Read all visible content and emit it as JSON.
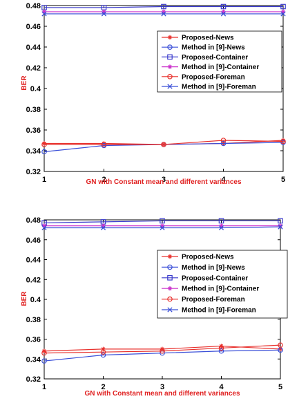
{
  "chart_data": [
    {
      "type": "line",
      "xlabel": "GN with Constant mean and different variances",
      "ylabel": "BER",
      "x": [
        1,
        2,
        3,
        4,
        5
      ],
      "xlim": [
        1,
        5
      ],
      "ylim": [
        0.32,
        0.48
      ],
      "yticks": [
        "0.32",
        "0.34",
        "0.36",
        "0.38",
        "0.4",
        "0.42",
        "0.44",
        "0.46",
        "0.48"
      ],
      "xticks": [
        "1",
        "2",
        "3",
        "4",
        "5"
      ],
      "grid": false,
      "legend_position": "right",
      "series": [
        {
          "name": "Proposed-News",
          "color": "#e8302c",
          "marker": "star",
          "values": [
            0.347,
            0.347,
            0.346,
            0.347,
            0.35
          ]
        },
        {
          "name": "Method in [9]-News",
          "color": "#3a4fd8",
          "marker": "circle",
          "values": [
            0.339,
            0.345,
            0.346,
            0.347,
            0.348
          ]
        },
        {
          "name": "Proposed-Container",
          "color": "#3a3acc",
          "marker": "square",
          "values": [
            0.478,
            0.478,
            0.479,
            0.479,
            0.479
          ]
        },
        {
          "name": "Method in [9]-Container",
          "color": "#cc33cc",
          "marker": "star",
          "values": [
            0.474,
            0.474,
            0.474,
            0.474,
            0.474
          ]
        },
        {
          "name": "Proposed-Foreman",
          "color": "#e8302c",
          "marker": "circle",
          "values": [
            0.346,
            0.346,
            0.346,
            0.35,
            0.349
          ]
        },
        {
          "name": "Method in [9]-Foreman",
          "color": "#3a4fd8",
          "marker": "x",
          "values": [
            0.472,
            0.472,
            0.472,
            0.472,
            0.472
          ]
        }
      ]
    },
    {
      "type": "line",
      "xlabel": "GN with Constant mean and different variances",
      "ylabel": "BER",
      "x": [
        1,
        2,
        3,
        4,
        5
      ],
      "xlim": [
        1,
        5
      ],
      "ylim": [
        0.32,
        0.48
      ],
      "yticks": [
        "0.32",
        "0.34",
        "0.36",
        "0.38",
        "0.4",
        "0.42",
        "0.44",
        "0.46",
        "0.48"
      ],
      "xticks": [
        "1",
        "2",
        "3",
        "4",
        "5"
      ],
      "grid": false,
      "legend_position": "right",
      "series": [
        {
          "name": "Proposed-News",
          "color": "#e8302c",
          "marker": "star",
          "values": [
            0.348,
            0.35,
            0.35,
            0.353,
            0.35
          ]
        },
        {
          "name": "Method in [9]-News",
          "color": "#3a4fd8",
          "marker": "circle",
          "values": [
            0.338,
            0.344,
            0.346,
            0.348,
            0.349
          ]
        },
        {
          "name": "Proposed-Container",
          "color": "#3a3acc",
          "marker": "square",
          "values": [
            0.477,
            0.478,
            0.479,
            0.479,
            0.479
          ]
        },
        {
          "name": "Method in [9]-Container",
          "color": "#cc33cc",
          "marker": "star",
          "values": [
            0.474,
            0.474,
            0.474,
            0.474,
            0.474
          ]
        },
        {
          "name": "Proposed-Foreman",
          "color": "#e8302c",
          "marker": "circle",
          "values": [
            0.346,
            0.347,
            0.348,
            0.351,
            0.354
          ]
        },
        {
          "name": "Method in [9]-Foreman",
          "color": "#3a4fd8",
          "marker": "x",
          "values": [
            0.472,
            0.472,
            0.472,
            0.472,
            0.473
          ]
        }
      ]
    }
  ]
}
